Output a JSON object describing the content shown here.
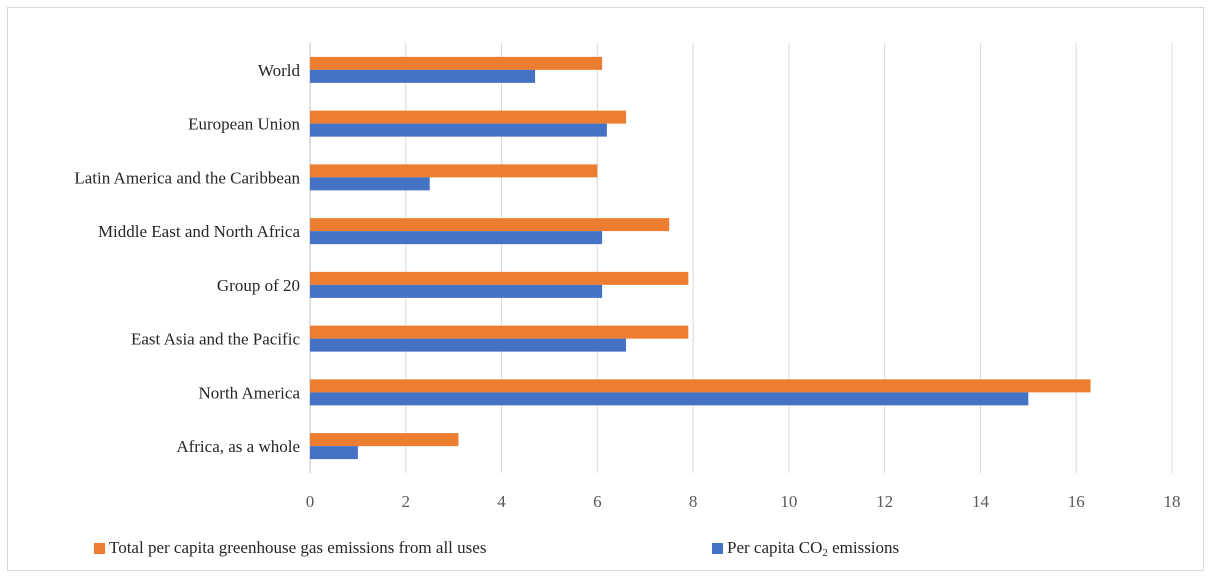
{
  "chart_data": {
    "type": "bar",
    "orientation": "horizontal",
    "categories": [
      "World",
      "European Union",
      "Latin America and the Caribbean",
      "Middle East and North Africa",
      "Group of 20",
      "East Asia and the Pacific",
      "North America",
      "Africa, as a whole"
    ],
    "series": [
      {
        "name": "Total per capita greenhouse gas emissions from all uses",
        "color": "#ED7D31",
        "values": [
          6.1,
          6.6,
          6.0,
          7.5,
          7.9,
          7.9,
          16.3,
          3.1
        ]
      },
      {
        "name_prefix": "Per capita CO",
        "name_subscript": "2",
        "name_suffix": " emissions",
        "color": "#4472C4",
        "values": [
          4.7,
          6.2,
          2.5,
          6.1,
          6.1,
          6.6,
          15.0,
          1.0
        ]
      }
    ],
    "xlim": [
      0,
      18
    ],
    "xticks": [
      "0",
      "2",
      "4",
      "6",
      "8",
      "10",
      "12",
      "14",
      "16",
      "18"
    ],
    "grid": "vertical",
    "legend_position": "bottom"
  }
}
